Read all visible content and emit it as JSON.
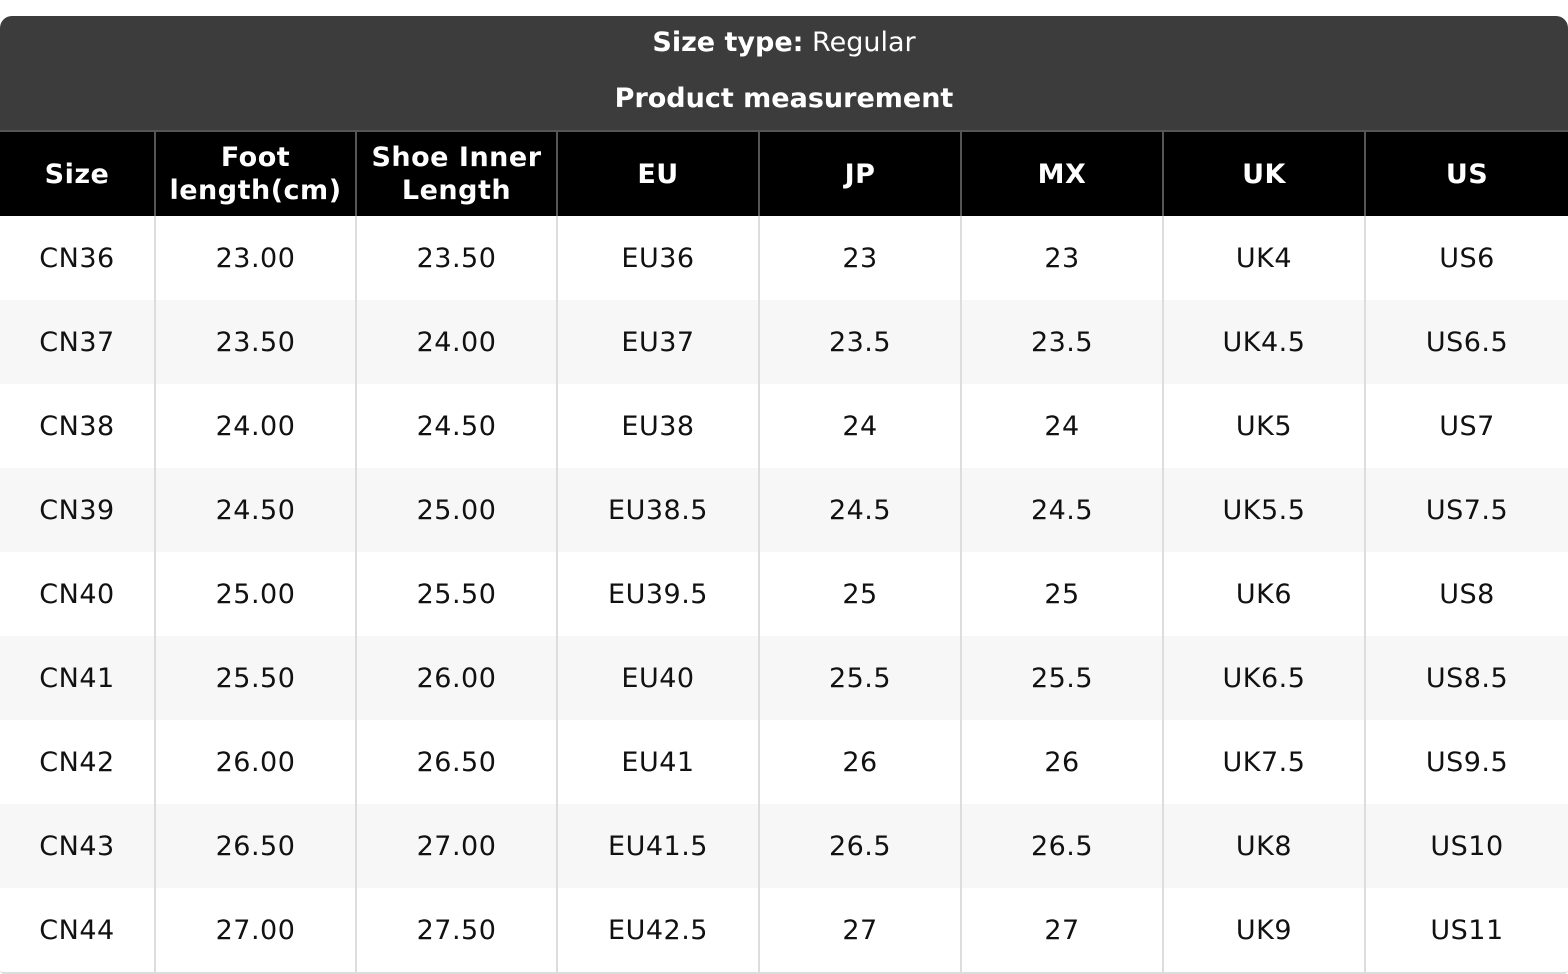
{
  "header": {
    "size_type_label": "Size type:",
    "size_type_value": "Regular",
    "title": "Product measurement"
  },
  "table": {
    "columns": [
      "Size",
      "Foot length(cm)",
      "Shoe Inner Length",
      "EU",
      "JP",
      "MX",
      "UK",
      "US"
    ],
    "rows": [
      [
        "CN36",
        "23.00",
        "23.50",
        "EU36",
        "23",
        "23",
        "UK4",
        "US6"
      ],
      [
        "CN37",
        "23.50",
        "24.00",
        "EU37",
        "23.5",
        "23.5",
        "UK4.5",
        "US6.5"
      ],
      [
        "CN38",
        "24.00",
        "24.50",
        "EU38",
        "24",
        "24",
        "UK5",
        "US7"
      ],
      [
        "CN39",
        "24.50",
        "25.00",
        "EU38.5",
        "24.5",
        "24.5",
        "UK5.5",
        "US7.5"
      ],
      [
        "CN40",
        "25.00",
        "25.50",
        "EU39.5",
        "25",
        "25",
        "UK6",
        "US8"
      ],
      [
        "CN41",
        "25.50",
        "26.00",
        "EU40",
        "25.5",
        "25.5",
        "UK6.5",
        "US8.5"
      ],
      [
        "CN42",
        "26.00",
        "26.50",
        "EU41",
        "26",
        "26",
        "UK7.5",
        "US9.5"
      ],
      [
        "CN43",
        "26.50",
        "27.00",
        "EU41.5",
        "26.5",
        "26.5",
        "UK8",
        "US10"
      ],
      [
        "CN44",
        "27.00",
        "27.50",
        "EU42.5",
        "27",
        "27",
        "UK9",
        "US11"
      ]
    ]
  }
}
